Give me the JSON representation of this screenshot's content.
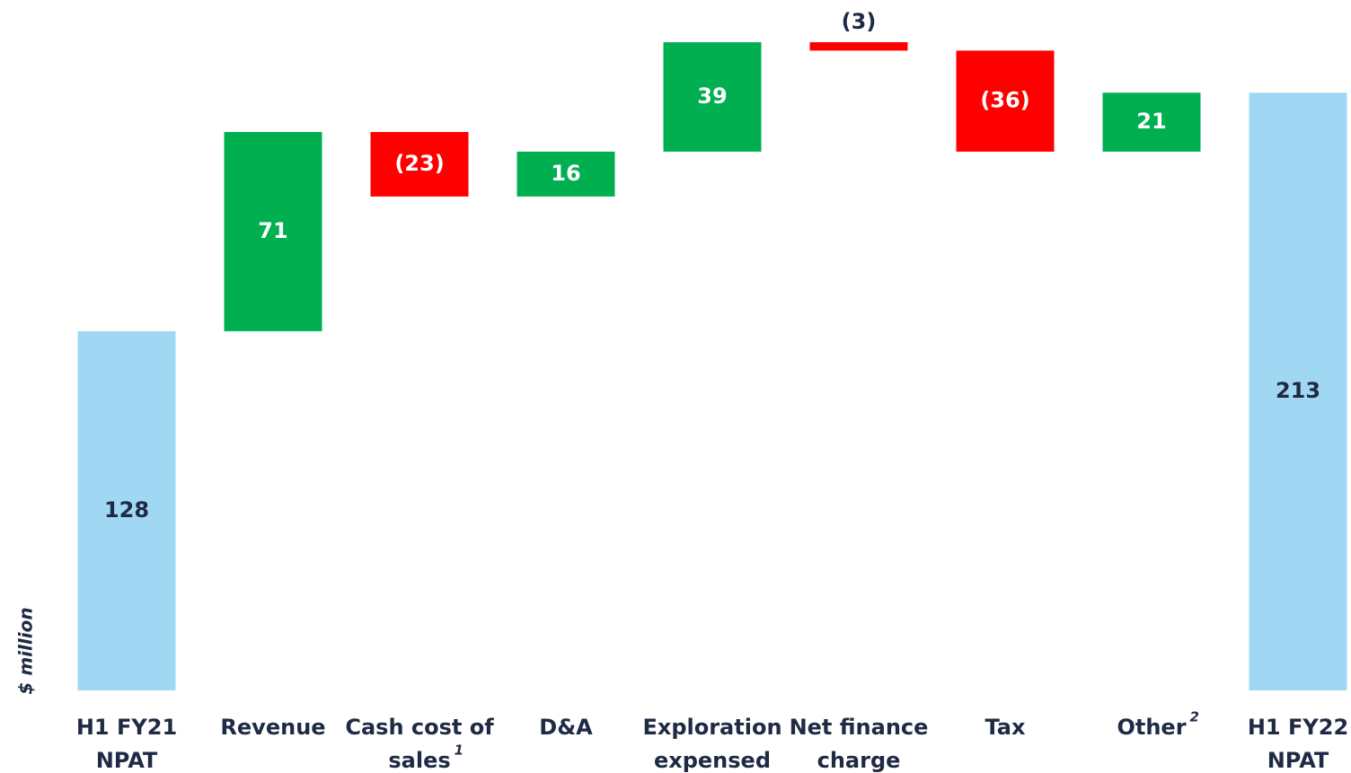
{
  "chart_data": {
    "type": "waterfall",
    "axis_label": "$ million",
    "categories": [
      [
        "H1 FY21",
        "NPAT"
      ],
      [
        "Revenue"
      ],
      [
        "Cash cost of",
        "sales"
      ],
      [
        "D&A"
      ],
      [
        "Exploration",
        "expensed"
      ],
      [
        "Net finance",
        "charge"
      ],
      [
        "Tax"
      ],
      [
        "Other"
      ],
      [
        "H1 FY22",
        "NPAT"
      ]
    ],
    "category_notes": [
      null,
      null,
      "1",
      null,
      null,
      null,
      null,
      "2",
      null
    ],
    "values": [
      128,
      71,
      -23,
      16,
      39,
      -3,
      -36,
      21,
      213
    ],
    "value_labels": [
      "128",
      "71",
      "(23)",
      "16",
      "39",
      "(3)",
      "(36)",
      "21",
      "213"
    ],
    "totals": [
      true,
      false,
      false,
      false,
      false,
      false,
      false,
      false,
      true
    ],
    "colors": {
      "total": "#a0d8f3",
      "increase": "#00b050",
      "decrease": "#ff0000"
    }
  }
}
